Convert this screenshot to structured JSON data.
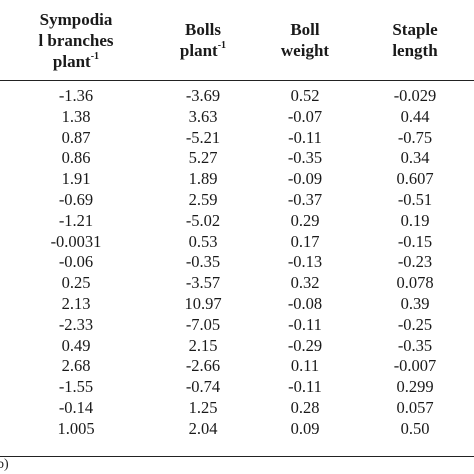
{
  "table": {
    "headers": [
      {
        "lines": [
          "Sympodia",
          "l branches",
          "plant"
        ],
        "sup": "-1"
      },
      {
        "lines": [
          "Bolls",
          "plant"
        ],
        "sup": "-1"
      },
      {
        "lines": [
          "Boll",
          "weight"
        ],
        "sup": ""
      },
      {
        "lines": [
          "Staple",
          "length"
        ],
        "sup": ""
      }
    ],
    "rows": [
      [
        "-1.36",
        "-3.69",
        "0.52",
        "-0.029"
      ],
      [
        "1.38",
        "3.63",
        "-0.07",
        "0.44"
      ],
      [
        "0.87",
        "-5.21",
        "-0.11",
        "-0.75"
      ],
      [
        "0.86",
        "5.27",
        "-0.35",
        "0.34"
      ],
      [
        "1.91",
        "1.89",
        "-0.09",
        "0.607"
      ],
      [
        "-0.69",
        "2.59",
        "-0.37",
        "-0.51"
      ],
      [
        "-1.21",
        "-5.02",
        "0.29",
        "0.19"
      ],
      [
        "-0.0031",
        "0.53",
        "0.17",
        "-0.15"
      ],
      [
        "-0.06",
        "-0.35",
        "-0.13",
        "-0.23"
      ],
      [
        "0.25",
        "-3.57",
        "0.32",
        "0.078"
      ],
      [
        "2.13",
        "10.97",
        "-0.08",
        "0.39"
      ],
      [
        "-2.33",
        "-7.05",
        "-0.11",
        "-0.25"
      ],
      [
        "0.49",
        "2.15",
        "-0.29",
        "-0.35"
      ],
      [
        "2.68",
        "-2.66",
        "0.11",
        "-0.007"
      ],
      [
        "-1.55",
        "-0.74",
        "-0.11",
        "0.299"
      ],
      [
        "-0.14",
        "1.25",
        "0.28",
        "0.057"
      ],
      [
        "1.005",
        "2.04",
        "0.09",
        "0.50"
      ]
    ],
    "footer": "b)"
  }
}
